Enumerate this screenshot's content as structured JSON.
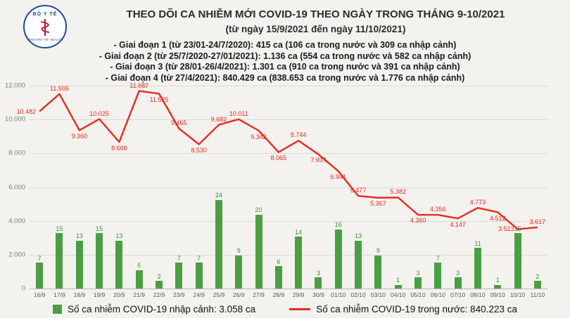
{
  "colors": {
    "background": "#f3f2ee",
    "green": "#4c9e44",
    "red": "#ea2b1f"
  },
  "logo": {
    "top_text": "BỘ Y TẾ",
    "bottom_text": "MINISTRY OF HEALTH"
  },
  "header": {
    "title": "THEO DÕI CA NHIỄM MỚI COVID-19 THEO NGÀY TRONG THÁNG 9-10/2021",
    "subtitle": "(từ ngày 15/9/2021 đến ngày 11/10/2021)",
    "stage_lines": [
      "- Giai đoạn 1 (từ 23/01-24/7/2020): 415 ca (106 ca trong nước và 309 ca nhập cảnh)",
      "- Giai đoạn 2 (từ 25/7/2020-27/01/2021): 1.136 ca (554 ca trong nước và 582 ca nhập cảnh)",
      "- Giai đoạn 3 (từ 28/01-26/4/2021): 1.301 ca (910 ca trong nước và 391 ca nhập cảnh)",
      "- Giai đoạn 4 (từ 27/4/2021): 840.429 ca (838.653 ca trong nước và 1.776 ca nhập cảnh)"
    ]
  },
  "chart_data": {
    "type": "bar",
    "subtype": "combo-bar-line",
    "title": "THEO DÕI CA NHIỄM MỚI COVID-19 THEO NGÀY TRONG THÁNG 9-10/2021",
    "grid": true,
    "legend_position": "bottom",
    "categories": [
      "16/9",
      "17/9",
      "18/9",
      "19/9",
      "20/9",
      "21/9",
      "22/9",
      "23/9",
      "24/9",
      "25/9",
      "26/9",
      "27/9",
      "28/9",
      "29/9",
      "30/9",
      "01/10",
      "02/10",
      "03/10",
      "04/10",
      "05/10",
      "06/10",
      "07/10",
      "08/10",
      "09/10",
      "10/10",
      "11/10"
    ],
    "left_axis": {
      "min": 0,
      "max": 12000,
      "tick_labels": [
        "12.000",
        "10.000",
        "8.000",
        "6.000",
        "4.000",
        "2.000",
        "0"
      ]
    },
    "series": [
      {
        "name": "Số ca nhiễm COVID-19 nhập cảnh",
        "type": "bar",
        "color": "#4c9e44",
        "label_color": "#3e8f3a",
        "values": [
          7,
          15,
          13,
          15,
          13,
          5,
          2,
          7,
          7,
          24,
          9,
          20,
          6,
          14,
          3,
          16,
          13,
          9,
          1,
          3,
          7,
          3,
          11,
          1,
          15,
          2
        ]
      },
      {
        "name": "Số ca nhiễm COVID-19 trong nước",
        "type": "line",
        "color": "#ea2b1f",
        "label_color": "#ea2b1f",
        "values": [
          10482,
          11506,
          9360,
          10025,
          8668,
          11687,
          11525,
          9465,
          8530,
          9682,
          10011,
          9342,
          8065,
          8744,
          7937,
          6941,
          5477,
          5367,
          5382,
          4360,
          4356,
          4147,
          4773,
          4512,
          3513,
          3617
        ]
      }
    ]
  },
  "legend": {
    "imported": {
      "label": "Số ca nhiễm COVID-19 nhập cảnh: 3.058 ca",
      "swatch_color": "#4c9e44"
    },
    "domestic": {
      "label": "Số ca nhiễm COVID-19 trong nước: 840.223 ca",
      "line_color": "#ea2b1f"
    }
  }
}
